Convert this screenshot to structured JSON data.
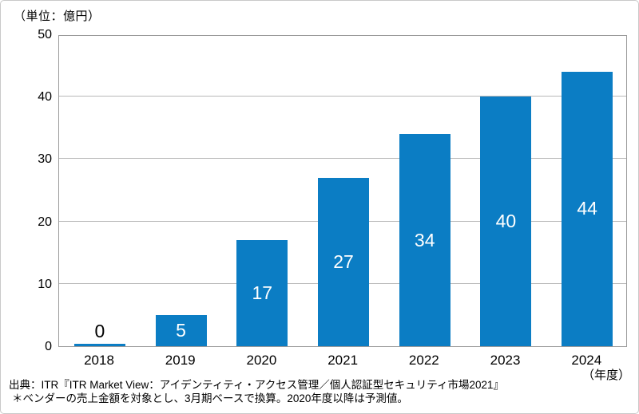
{
  "unit_label": "（単位：億円）",
  "chart_data": {
    "type": "bar",
    "title": "",
    "categories": [
      "2018",
      "2019",
      "2020",
      "2021",
      "2022",
      "2023",
      "2024"
    ],
    "values": [
      0,
      5,
      17,
      27,
      34,
      40,
      44
    ],
    "unit": "（単位：億円）",
    "xlabel": "（年度）",
    "ylabel": "",
    "ylim": [
      0,
      50
    ],
    "yticks": [
      0,
      10,
      20,
      30,
      40,
      50
    ],
    "grid": "horizontal",
    "legend": "none",
    "bar_color": "#0b7dc4",
    "value_label_inside_color": "#ffffff",
    "value_label_outside_color": "#000000"
  },
  "footer": {
    "source": "出典：ITR『ITR Market View：アイデンティティ・アクセス管理／個人認証型セキュリティ市場2021』",
    "note": "＊ベンダーの売上金額を対象とし、3月期ベースで換算。2020年度以降は予測値。"
  }
}
